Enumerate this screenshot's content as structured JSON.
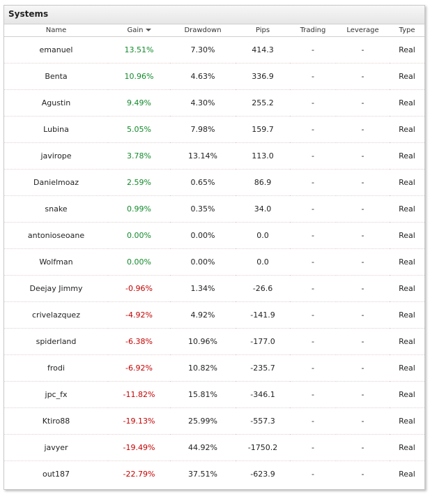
{
  "panel": {
    "title": "Systems"
  },
  "columns": [
    {
      "key": "name",
      "label": "Name"
    },
    {
      "key": "gain",
      "label": "Gain",
      "sorted": "desc"
    },
    {
      "key": "drawdown",
      "label": "Drawdown"
    },
    {
      "key": "pips",
      "label": "Pips"
    },
    {
      "key": "trading",
      "label": "Trading"
    },
    {
      "key": "leverage",
      "label": "Leverage"
    },
    {
      "key": "type",
      "label": "Type"
    }
  ],
  "rows": [
    {
      "name": "emanuel",
      "gain": "13.51%",
      "gain_sign": "pos",
      "drawdown": "7.30%",
      "pips": "414.3",
      "trading": "-",
      "leverage": "-",
      "type": "Real"
    },
    {
      "name": "Benta",
      "gain": "10.96%",
      "gain_sign": "pos",
      "drawdown": "4.63%",
      "pips": "336.9",
      "trading": "-",
      "leverage": "-",
      "type": "Real"
    },
    {
      "name": "Agustin",
      "gain": "9.49%",
      "gain_sign": "pos",
      "drawdown": "4.30%",
      "pips": "255.2",
      "trading": "-",
      "leverage": "-",
      "type": "Real"
    },
    {
      "name": "Lubina",
      "gain": "5.05%",
      "gain_sign": "pos",
      "drawdown": "7.98%",
      "pips": "159.7",
      "trading": "-",
      "leverage": "-",
      "type": "Real"
    },
    {
      "name": "javirope",
      "gain": "3.78%",
      "gain_sign": "pos",
      "drawdown": "13.14%",
      "pips": "113.0",
      "trading": "-",
      "leverage": "-",
      "type": "Real"
    },
    {
      "name": "Danielmoaz",
      "gain": "2.59%",
      "gain_sign": "pos",
      "drawdown": "0.65%",
      "pips": "86.9",
      "trading": "-",
      "leverage": "-",
      "type": "Real"
    },
    {
      "name": "snake",
      "gain": "0.99%",
      "gain_sign": "pos",
      "drawdown": "0.35%",
      "pips": "34.0",
      "trading": "-",
      "leverage": "-",
      "type": "Real"
    },
    {
      "name": "antonioseoane",
      "gain": "0.00%",
      "gain_sign": "zero",
      "drawdown": "0.00%",
      "pips": "0.0",
      "trading": "-",
      "leverage": "-",
      "type": "Real"
    },
    {
      "name": "Wolfman",
      "gain": "0.00%",
      "gain_sign": "zero",
      "drawdown": "0.00%",
      "pips": "0.0",
      "trading": "-",
      "leverage": "-",
      "type": "Real"
    },
    {
      "name": "Deejay Jimmy",
      "gain": "-0.96%",
      "gain_sign": "neg",
      "drawdown": "1.34%",
      "pips": "-26.6",
      "trading": "-",
      "leverage": "-",
      "type": "Real"
    },
    {
      "name": "crivelazquez",
      "gain": "-4.92%",
      "gain_sign": "neg",
      "drawdown": "4.92%",
      "pips": "-141.9",
      "trading": "-",
      "leverage": "-",
      "type": "Real"
    },
    {
      "name": "spiderland",
      "gain": "-6.38%",
      "gain_sign": "neg",
      "drawdown": "10.96%",
      "pips": "-177.0",
      "trading": "-",
      "leverage": "-",
      "type": "Real"
    },
    {
      "name": "frodi",
      "gain": "-6.92%",
      "gain_sign": "neg",
      "drawdown": "10.82%",
      "pips": "-235.7",
      "trading": "-",
      "leverage": "-",
      "type": "Real"
    },
    {
      "name": "jpc_fx",
      "gain": "-11.82%",
      "gain_sign": "neg",
      "drawdown": "15.81%",
      "pips": "-346.1",
      "trading": "-",
      "leverage": "-",
      "type": "Real"
    },
    {
      "name": "Ktiro88",
      "gain": "-19.13%",
      "gain_sign": "neg",
      "drawdown": "25.99%",
      "pips": "-557.3",
      "trading": "-",
      "leverage": "-",
      "type": "Real"
    },
    {
      "name": "javyer",
      "gain": "-19.49%",
      "gain_sign": "neg",
      "drawdown": "44.92%",
      "pips": "-1750.2",
      "trading": "-",
      "leverage": "-",
      "type": "Real"
    },
    {
      "name": "out187",
      "gain": "-22.79%",
      "gain_sign": "neg",
      "drawdown": "37.51%",
      "pips": "-623.9",
      "trading": "-",
      "leverage": "-",
      "type": "Real"
    }
  ],
  "colors": {
    "gain_positive": "#118a2a",
    "gain_negative": "#c40000"
  },
  "icons": {
    "sort_indicator": "sort-desc-icon"
  }
}
